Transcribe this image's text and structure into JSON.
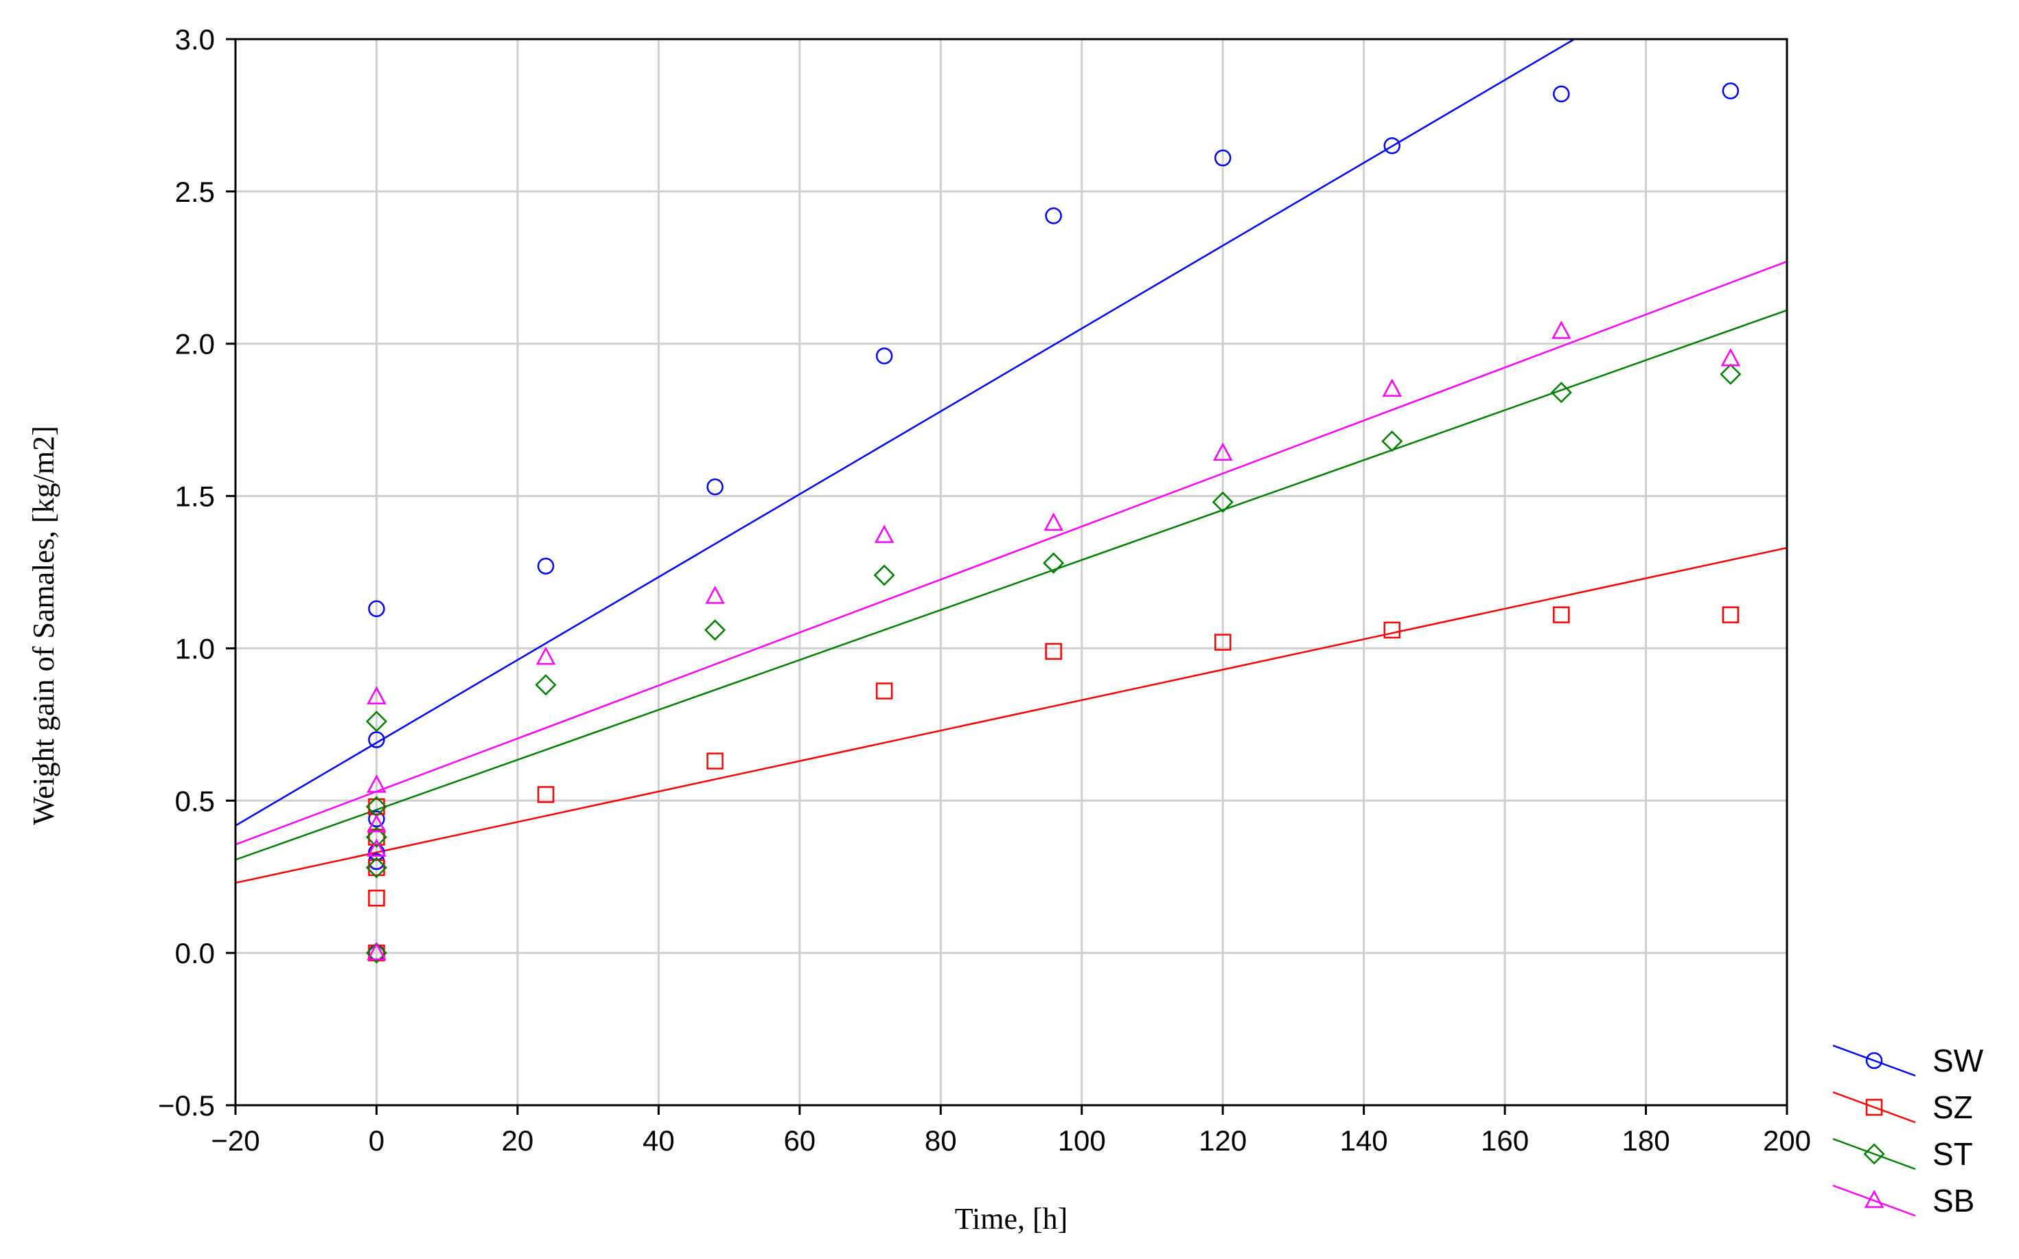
{
  "chart_data": {
    "type": "scatter",
    "title": "",
    "xlabel": "Time, [h]",
    "ylabel": "Weight gain of Samales, [kg/m2]",
    "xlim": [
      -20,
      200
    ],
    "ylim": [
      -0.5,
      3.0
    ],
    "xticks": [
      -20,
      0,
      20,
      40,
      60,
      80,
      100,
      120,
      140,
      160,
      180,
      200
    ],
    "yticks": [
      -0.5,
      0.0,
      0.5,
      1.0,
      1.5,
      2.0,
      2.5,
      3.0
    ],
    "xtick_labels": [
      "−20",
      "0",
      "20",
      "40",
      "60",
      "80",
      "100",
      "120",
      "140",
      "160",
      "180",
      "200"
    ],
    "ytick_labels": [
      "−0.5",
      "0.0",
      "0.5",
      "1.0",
      "1.5",
      "2.0",
      "2.5",
      "3.0"
    ],
    "grid": true,
    "legend_position": "bottom-right",
    "series": [
      {
        "name": "SW",
        "color": "#0000ff",
        "marker": "circle",
        "x": [
          0,
          0,
          0,
          0,
          0,
          0,
          24,
          48,
          72,
          96,
          120,
          144,
          168,
          192
        ],
        "y": [
          1.13,
          0.7,
          0.44,
          0.33,
          0.3,
          0.0,
          1.27,
          1.53,
          1.96,
          2.42,
          2.61,
          2.65,
          2.82,
          2.83
        ],
        "fit": {
          "slope": 0.0136,
          "intercept": 0.69
        }
      },
      {
        "name": "SZ",
        "color": "#ff0000",
        "marker": "square",
        "x": [
          0,
          0,
          0,
          0,
          0,
          24,
          48,
          72,
          96,
          120,
          144,
          168,
          192
        ],
        "y": [
          0.48,
          0.38,
          0.28,
          0.18,
          0.0,
          0.52,
          0.63,
          0.86,
          0.99,
          1.02,
          1.06,
          1.11,
          1.11
        ],
        "fit": {
          "slope": 0.005,
          "intercept": 0.33
        }
      },
      {
        "name": "ST",
        "color": "#008000",
        "marker": "diamond",
        "x": [
          0,
          0,
          0,
          0,
          0,
          24,
          48,
          72,
          96,
          120,
          144,
          168,
          192
        ],
        "y": [
          0.76,
          0.48,
          0.38,
          0.28,
          0.0,
          0.88,
          1.06,
          1.24,
          1.28,
          1.48,
          1.68,
          1.84,
          1.9
        ],
        "fit": {
          "slope": 0.0082,
          "intercept": 0.47
        }
      },
      {
        "name": "SB",
        "color": "#ff00ff",
        "marker": "triangle",
        "x": [
          0,
          0,
          0,
          0,
          0,
          24,
          48,
          72,
          96,
          120,
          144,
          168,
          192
        ],
        "y": [
          0.84,
          0.55,
          0.42,
          0.34,
          0.0,
          0.97,
          1.17,
          1.37,
          1.41,
          1.64,
          1.85,
          2.04,
          1.95
        ],
        "fit": {
          "slope": 0.0087,
          "intercept": 0.53
        }
      }
    ]
  }
}
